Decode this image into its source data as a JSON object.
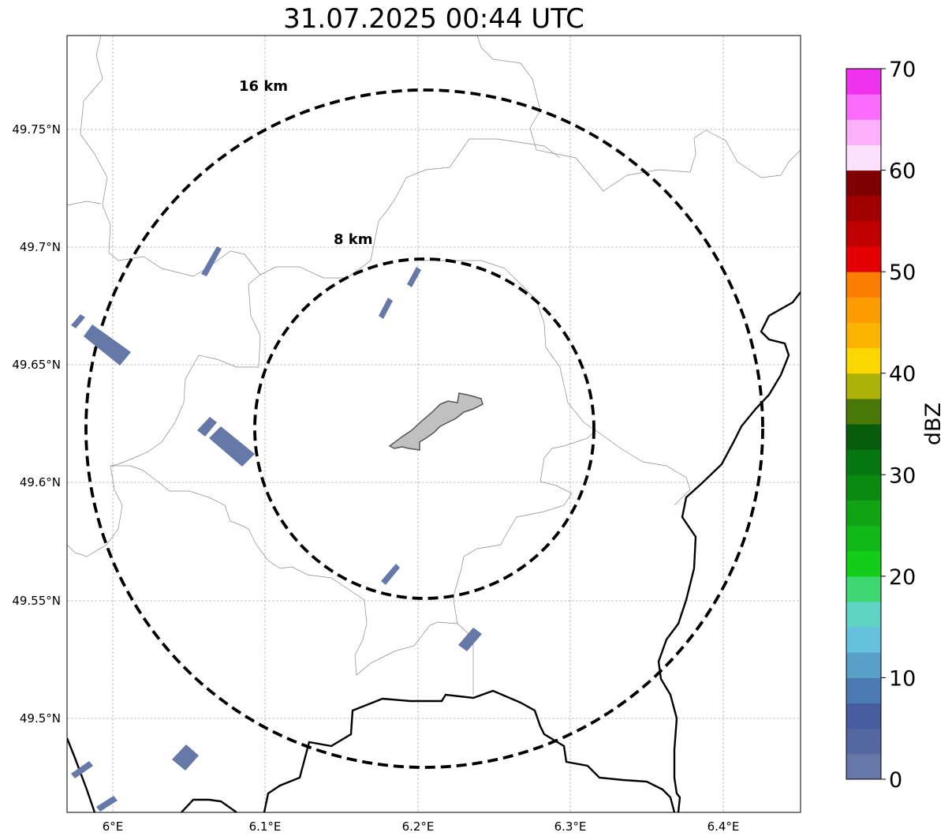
{
  "title": "31.07.2025 00:44 UTC",
  "map": {
    "lat_ticks": [
      "49.75°N",
      "49.7°N",
      "49.65°N",
      "49.6°N",
      "49.55°N",
      "49.5°N"
    ],
    "lon_ticks": [
      "6°E",
      "6.1°E",
      "6.2°E",
      "6.3°E",
      "6.4°E"
    ],
    "range_rings": [
      {
        "label": "16 km",
        "radius_km": 16
      },
      {
        "label": "8 km",
        "radius_km": 8
      }
    ],
    "gridlines": true,
    "city_area_color": "#c0c0c0",
    "echo_color": "#6678a8"
  },
  "colorbar": {
    "label": "dBZ",
    "tick_labels": [
      "0",
      "10",
      "20",
      "30",
      "40",
      "50",
      "60",
      "70"
    ],
    "colors": [
      "#6678a8",
      "#5468a0",
      "#465c9e",
      "#4a7ab0",
      "#58a0c8",
      "#64c0dc",
      "#60d4c4",
      "#3ed872",
      "#12cc18",
      "#10b818",
      "#10a414",
      "#0a8a10",
      "#067610",
      "#065c0a",
      "#4a7808",
      "#acb208",
      "#fcd600",
      "#fcb400",
      "#fc9c00",
      "#fc7e00",
      "#e40000",
      "#c00000",
      "#a00000",
      "#7e0000",
      "#fce0fc",
      "#fcb0fc",
      "#fc6cfc",
      "#ee32ee"
    ]
  }
}
